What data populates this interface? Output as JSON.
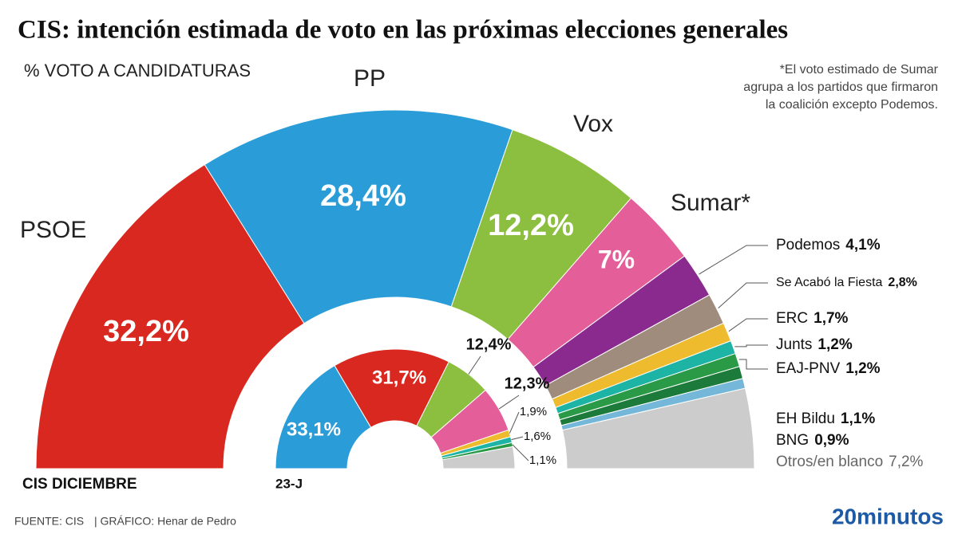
{
  "title": "CIS: intención estimada de voto en las próximas elecciones generales",
  "subtitle": "% VOTO A CANDIDATURAS",
  "note": [
    "*El voto estimado de Sumar",
    "agrupa a los partidos que firmaron",
    "la coalición excepto Podemos."
  ],
  "footer": {
    "source": "FUENTE: CIS",
    "credit": "| GRÁFICO: Henar de Pedro",
    "logo": "20minutos"
  },
  "chart_data": [
    {
      "type": "semicircle",
      "title": "CIS DICIEMBRE",
      "categories": [
        "PSOE",
        "PP",
        "Vox",
        "Sumar*",
        "Podemos",
        "Se Acabó la Fiesta",
        "ERC",
        "Junts",
        "EAJ-PNV",
        "EH Bildu",
        "BNG",
        "Otros/en blanco"
      ],
      "values": [
        32.2,
        28.4,
        12.2,
        7,
        4.1,
        2.8,
        1.7,
        1.2,
        1.2,
        1.1,
        0.9,
        7.2
      ],
      "value_labels": [
        "32,2%",
        "28,4%",
        "12,2%",
        "7%",
        "4,1%",
        "2,8%",
        "1,7%",
        "1,2%",
        "1,2%",
        "1,1%",
        "0,9%",
        "7,2%"
      ],
      "colors": [
        "#d8281f",
        "#2a9dd8",
        "#8cbf3f",
        "#e45f99",
        "#8b2a8e",
        "#9f8c7d",
        "#efbb2e",
        "#1db4a6",
        "#2a9a46",
        "#1c7a3a",
        "#74b7d9",
        "#cccccc"
      ]
    },
    {
      "type": "semicircle",
      "title": "23-J",
      "values": [
        33.1,
        31.7,
        12.4,
        12.3,
        1.9,
        1.6,
        1.1,
        5.9
      ],
      "value_labels": [
        "33,1%",
        "31,7%",
        "12,4%",
        "12,3%",
        "1,9%",
        "1,6%",
        "1,1%",
        null
      ],
      "colors": [
        "#2a9dd8",
        "#d8281f",
        "#8cbf3f",
        "#e45f99",
        "#efbb2e",
        "#1db4a6",
        "#2a9a46",
        "#cccccc"
      ]
    }
  ]
}
